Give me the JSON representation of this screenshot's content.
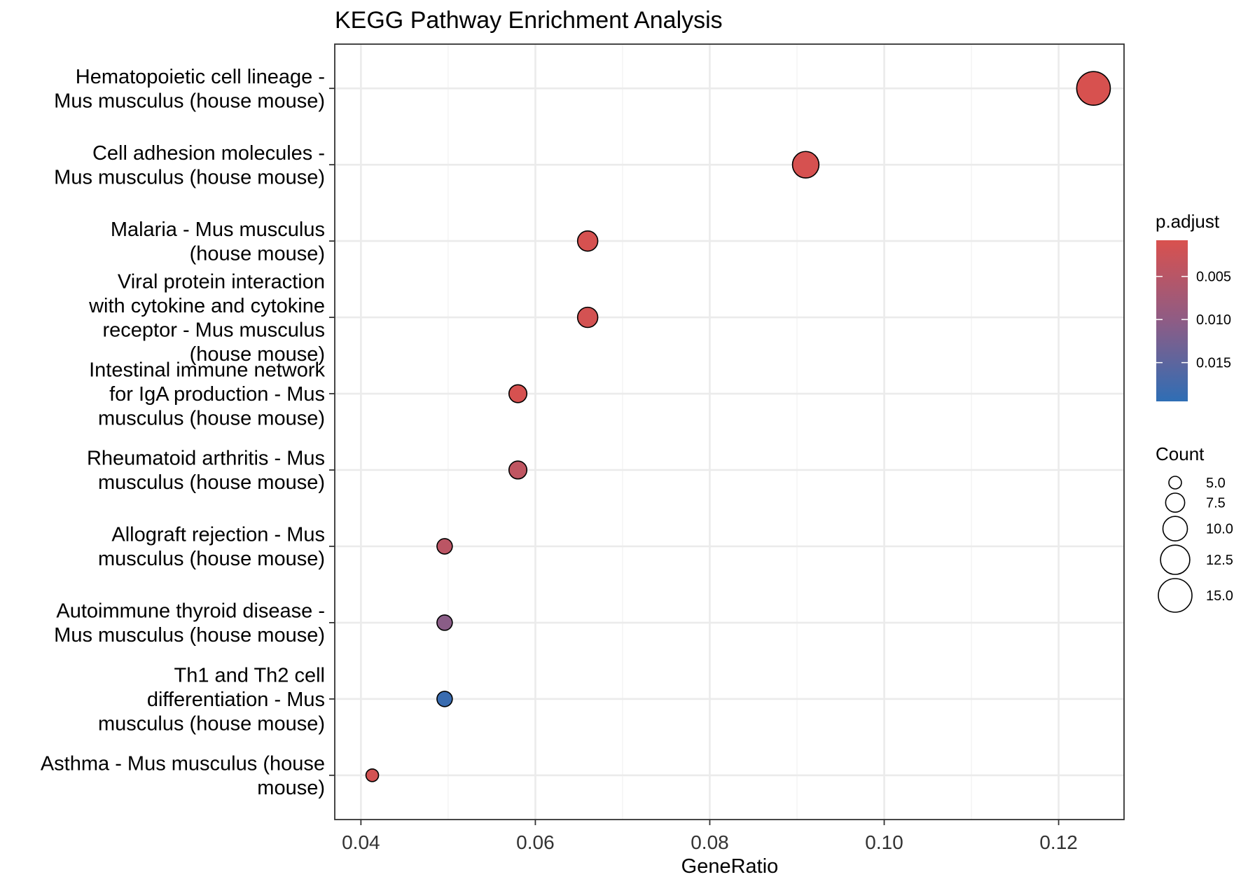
{
  "chart_data": {
    "type": "scatter",
    "title": "KEGG Pathway Enrichment Analysis",
    "xlabel": "GeneRatio",
    "ylabel": "",
    "xlim": [
      0.037,
      0.1275
    ],
    "x_ticks": [
      0.04,
      0.06,
      0.08,
      0.1,
      0.12
    ],
    "x_tick_labels": [
      "0.04",
      "0.06",
      "0.08",
      "0.10",
      "0.12"
    ],
    "grid": true,
    "points": [
      {
        "label_lines": [
          "Hematopoietic cell lineage -",
          "Mus musculus (house mouse)"
        ],
        "gene_ratio": 0.124,
        "count": 15,
        "p_adjust": 0.001
      },
      {
        "label_lines": [
          "Cell adhesion molecules -",
          "Mus musculus (house mouse)"
        ],
        "gene_ratio": 0.091,
        "count": 11,
        "p_adjust": 0.0012
      },
      {
        "label_lines": [
          "Malaria - Mus musculus",
          "(house mouse)"
        ],
        "gene_ratio": 0.066,
        "count": 8,
        "p_adjust": 0.0012
      },
      {
        "label_lines": [
          "Viral protein interaction",
          "with cytokine and cytokine",
          "receptor - Mus musculus",
          "(house mouse)"
        ],
        "gene_ratio": 0.066,
        "count": 8,
        "p_adjust": 0.0015
      },
      {
        "label_lines": [
          "Intestinal immune network",
          "for IgA production - Mus",
          "musculus (house mouse)"
        ],
        "gene_ratio": 0.058,
        "count": 7,
        "p_adjust": 0.0012
      },
      {
        "label_lines": [
          "Rheumatoid arthritis - Mus",
          "musculus (house mouse)"
        ],
        "gene_ratio": 0.058,
        "count": 7,
        "p_adjust": 0.004
      },
      {
        "label_lines": [
          "Allograft rejection - Mus",
          "musculus (house mouse)"
        ],
        "gene_ratio": 0.0496,
        "count": 6,
        "p_adjust": 0.0045
      },
      {
        "label_lines": [
          "Autoimmune thyroid disease -",
          "Mus musculus (house mouse)"
        ],
        "gene_ratio": 0.0496,
        "count": 6,
        "p_adjust": 0.0105
      },
      {
        "label_lines": [
          "Th1 and Th2 cell",
          "differentiation - Mus",
          "musculus (house mouse)"
        ],
        "gene_ratio": 0.0496,
        "count": 6,
        "p_adjust": 0.0185
      },
      {
        "label_lines": [
          "Asthma - Mus musculus (house",
          "mouse)"
        ],
        "gene_ratio": 0.0413,
        "count": 5,
        "p_adjust": 0.0015
      }
    ],
    "color_legend": {
      "title": "p.adjust",
      "range": [
        0.0008,
        0.0195
      ],
      "ticks": [
        0.005,
        0.01,
        0.015
      ],
      "tick_labels": [
        "0.005",
        "0.010",
        "0.015"
      ],
      "low_color": "#D9514E",
      "mid_color": "#8E5C85",
      "high_color": "#2F6EB5"
    },
    "size_legend": {
      "title": "Count",
      "values": [
        5.0,
        7.5,
        10.0,
        12.5,
        15.0
      ],
      "labels": [
        "5.0",
        "7.5",
        "10.0",
        "12.5",
        "15.0"
      ]
    },
    "legend_position": "right"
  }
}
